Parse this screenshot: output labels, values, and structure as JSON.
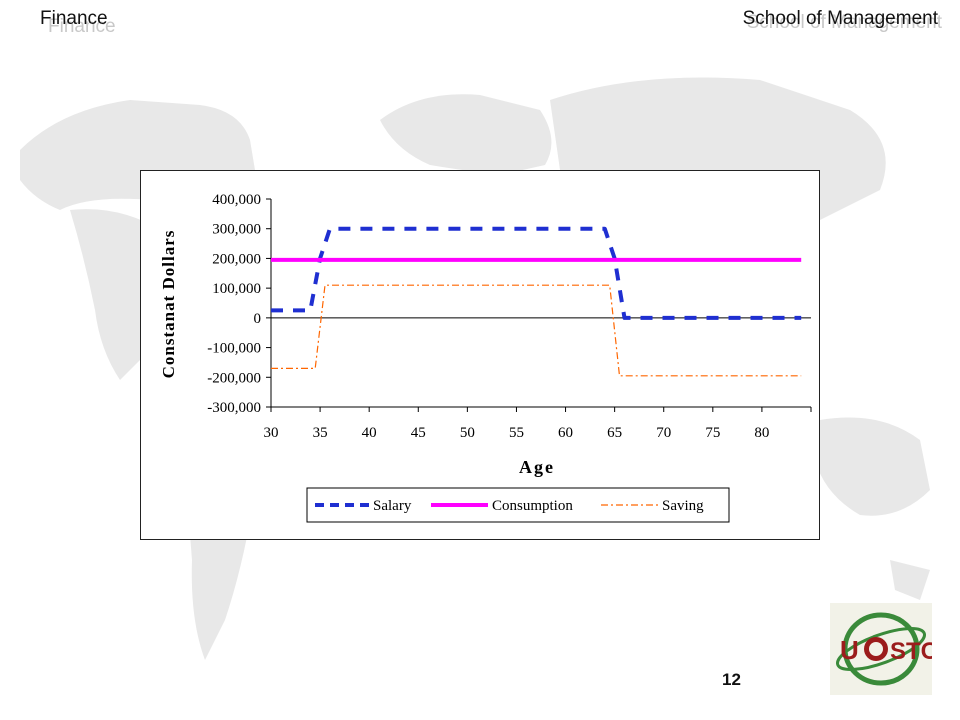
{
  "header": {
    "left_title": "Finance",
    "right_title": "School of Management"
  },
  "page_number": "12",
  "logo": {
    "text": "UESTC",
    "colors": {
      "text": "#9b1c1c",
      "ring": "#3a8a3a",
      "bg": "#f2f2e8"
    }
  },
  "chart_data": {
    "type": "line",
    "xlabel": "Age",
    "ylabel": "Constanat Dollars",
    "xlim": [
      30,
      85
    ],
    "ylim": [
      -300000,
      400000
    ],
    "x_ticks": [
      30,
      35,
      40,
      45,
      50,
      55,
      60,
      65,
      70,
      75,
      80
    ],
    "x_tick_labels": [
      "30",
      "35",
      "40",
      "45",
      "50",
      "55",
      "60",
      "65",
      "70",
      "75",
      "80"
    ],
    "y_ticks": [
      400000,
      300000,
      200000,
      100000,
      0,
      -100000,
      -200000,
      -300000
    ],
    "y_tick_labels": [
      "400,000",
      "300,000",
      "200,000",
      "100,000",
      "0",
      "-100,000",
      "-200,000",
      "-300,000"
    ],
    "grid": false,
    "legend": "bottom",
    "series": [
      {
        "name": "Salary",
        "color": "#1f2fd1",
        "style": "dashed-thick",
        "x": [
          30,
          34,
          35,
          36,
          64,
          65,
          66,
          84
        ],
        "y": [
          25000,
          25000,
          200000,
          300000,
          300000,
          200000,
          0,
          0
        ]
      },
      {
        "name": "Consumption",
        "color": "#ff00ff",
        "style": "solid-thick",
        "x": [
          30,
          84
        ],
        "y": [
          195000,
          195000
        ]
      },
      {
        "name": "Saving",
        "color": "#ff6600",
        "style": "dashdot-thin",
        "x": [
          30,
          34.5,
          35.5,
          64.5,
          65.5,
          84
        ],
        "y": [
          -170000,
          -170000,
          110000,
          110000,
          -195000,
          -195000
        ]
      }
    ]
  }
}
